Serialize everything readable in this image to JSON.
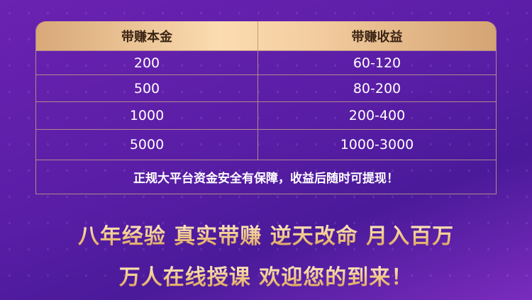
{
  "table": {
    "headers": [
      "带赚本金",
      "带赚收益"
    ],
    "rows": [
      [
        "200",
        "60-120"
      ],
      [
        "500",
        "80-200"
      ],
      [
        "1000",
        "200-400"
      ],
      [
        "5000",
        "1000-3000"
      ]
    ],
    "note": "正规大平台资金安全有保障，收益后随时可提现！"
  },
  "slogans": [
    "八年经验 真实带赚 逆天改命 月入百万",
    "万人在线授课 欢迎您的到来！"
  ],
  "colors": {
    "background": "#5a1ea6",
    "header_gold": "#f3cda0",
    "text_gold": "#f2c98a"
  }
}
